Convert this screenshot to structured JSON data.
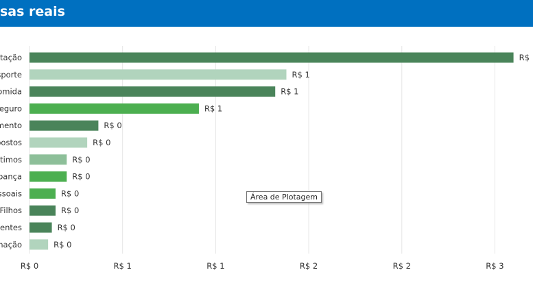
{
  "header": {
    "title": "sas reais",
    "background": "#0070c0"
  },
  "tooltip": {
    "text": "Área de Plotagem"
  },
  "chart_data": {
    "type": "bar",
    "orientation": "horizontal",
    "title": "sas reais",
    "categories": [
      "itação",
      "sporte",
      "omida",
      "eguro",
      "mento",
      "postos",
      "stimos",
      "pança",
      "ssoais",
      "Filhos",
      "centes",
      "mação"
    ],
    "values": [
      2.6,
      1.38,
      1.32,
      0.91,
      0.37,
      0.31,
      0.2,
      0.2,
      0.14,
      0.14,
      0.12,
      0.1
    ],
    "value_labels": [
      "R$",
      "R$ 1",
      "R$ 1",
      "R$ 1",
      "R$ 0",
      "R$ 0",
      "R$ 0",
      "R$ 0",
      "R$ 0",
      "R$ 0",
      "R$ 0",
      "R$ 0"
    ],
    "colors": [
      "#4a845a",
      "#b1d4bd",
      "#4a845a",
      "#4caf50",
      "#4a845a",
      "#b1d4bd",
      "#8dbf99",
      "#4caf50",
      "#4caf50",
      "#4a845a",
      "#4a845a",
      "#b1d4bd"
    ],
    "x_ticks": [
      0,
      0.5,
      1,
      1.5,
      2,
      2.5
    ],
    "x_tick_labels": [
      "R$ 0",
      "R$ 1",
      "R$ 1",
      "R$ 2",
      "R$ 2",
      "R$ 3"
    ],
    "xlim": [
      0,
      2.9
    ],
    "grid": true,
    "legend": "none"
  }
}
